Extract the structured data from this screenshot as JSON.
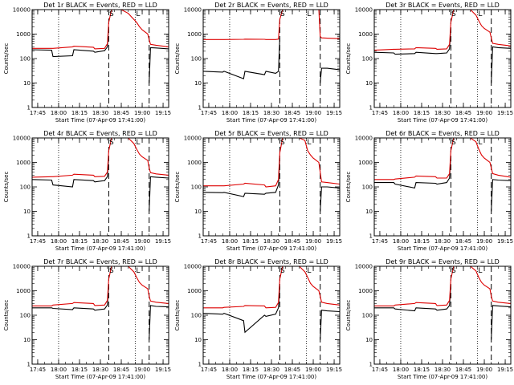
{
  "chart_data": {
    "type": "line",
    "layout": "3x3 grid",
    "xlabel": "Start Time (07-Apr-09 17:41:00)",
    "ylabel": "Counts/sec",
    "x_ticks": [
      "17:45",
      "18:00",
      "18:15",
      "18:30",
      "18:45",
      "19:00",
      "19:15"
    ],
    "x_start": "17:41",
    "x_end": "19:19",
    "y_scale": "log",
    "ylim": [
      1,
      10000
    ],
    "y_ticks": [
      1,
      10,
      100,
      1000,
      10000
    ],
    "y_tick_labels": [
      "1",
      "10",
      "100",
      "1000",
      "10000"
    ],
    "dotted_lines": [
      "18:00",
      "18:55"
    ],
    "dashed_lines": [
      "18:36",
      "19:05"
    ],
    "markers": [
      {
        "label": "S",
        "time": "18:38"
      },
      {
        "label": "L",
        "time": "18:57"
      }
    ],
    "legend": [
      {
        "name": "Events",
        "color": "#000000"
      },
      {
        "name": "LLD",
        "color": "#dd0000"
      }
    ],
    "series_x": [
      "17:41",
      "17:55",
      "17:56",
      "18:10",
      "18:11",
      "18:25",
      "18:26",
      "18:33",
      "18:35",
      "18:36",
      "18:38",
      "18:40",
      "18:45",
      "18:50",
      "18:54",
      "18:56",
      "18:58",
      "19:00",
      "19:04",
      "19:05",
      "19:06",
      "19:10",
      "19:19"
    ],
    "panels": [
      {
        "title": "Det 1r BLACK = Events, RED = LLD",
        "events": [
          230,
          220,
          120,
          130,
          230,
          200,
          180,
          210,
          300,
          2000,
          null,
          null,
          null,
          null,
          null,
          null,
          null,
          null,
          null,
          10,
          280,
          270,
          250
        ],
        "lld": [
          260,
          260,
          260,
          300,
          320,
          290,
          250,
          260,
          400,
          3000,
          10000,
          10000,
          10000,
          7000,
          4000,
          3000,
          2000,
          1500,
          1000,
          600,
          380,
          350,
          300
        ]
      },
      {
        "title": "Det 2r BLACK = Events, RED = LLD",
        "events": [
          30,
          28,
          30,
          15,
          30,
          22,
          30,
          25,
          30,
          700,
          null,
          null,
          null,
          null,
          null,
          null,
          null,
          null,
          null,
          10,
          40,
          40,
          35
        ],
        "lld": [
          600,
          600,
          600,
          610,
          620,
          610,
          600,
          600,
          620,
          4000,
          10000,
          10000,
          10000,
          10000,
          10000,
          10000,
          10000,
          10000,
          10000,
          800,
          700,
          680,
          650
        ]
      },
      {
        "title": "Det 3r BLACK = Events, RED = LLD",
        "events": [
          180,
          170,
          150,
          160,
          180,
          160,
          160,
          170,
          250,
          1800,
          null,
          null,
          null,
          null,
          null,
          null,
          null,
          null,
          null,
          10,
          300,
          280,
          260
        ],
        "lld": [
          220,
          240,
          240,
          250,
          280,
          260,
          240,
          250,
          380,
          3000,
          10000,
          10000,
          10000,
          10000,
          6000,
          3500,
          2200,
          1700,
          1200,
          700,
          420,
          380,
          330
        ]
      },
      {
        "title": "Det 4r BLACK = Events, RED = LLD",
        "events": [
          200,
          190,
          120,
          100,
          200,
          180,
          160,
          180,
          260,
          1800,
          null,
          null,
          null,
          null,
          null,
          null,
          null,
          null,
          null,
          10,
          260,
          250,
          230
        ],
        "lld": [
          250,
          260,
          260,
          300,
          330,
          300,
          260,
          270,
          400,
          3000,
          10000,
          10000,
          10000,
          10000,
          6000,
          3500,
          2200,
          1700,
          1200,
          600,
          380,
          340,
          300
        ]
      },
      {
        "title": "Det 5r BLACK = Events, RED = LLD",
        "events": [
          60,
          58,
          60,
          40,
          55,
          50,
          55,
          60,
          120,
          1500,
          null,
          null,
          null,
          null,
          null,
          null,
          null,
          null,
          null,
          10,
          100,
          100,
          90
        ],
        "lld": [
          110,
          110,
          110,
          130,
          140,
          120,
          100,
          110,
          200,
          2500,
          10000,
          10000,
          10000,
          10000,
          8000,
          3000,
          2000,
          1500,
          1000,
          400,
          160,
          150,
          130
        ]
      },
      {
        "title": "Det 6r BLACK = Events, RED = LLD",
        "events": [
          150,
          150,
          130,
          90,
          150,
          140,
          130,
          150,
          230,
          1800,
          null,
          null,
          null,
          null,
          null,
          null,
          null,
          null,
          null,
          10,
          200,
          190,
          180
        ],
        "lld": [
          200,
          200,
          210,
          250,
          280,
          260,
          230,
          230,
          350,
          3000,
          10000,
          10000,
          10000,
          10000,
          7000,
          3500,
          2000,
          1500,
          1000,
          600,
          350,
          300,
          250
        ]
      },
      {
        "title": "Det 7r BLACK = Events, RED = LLD",
        "events": [
          200,
          200,
          190,
          170,
          200,
          180,
          160,
          180,
          260,
          1800,
          null,
          null,
          null,
          null,
          null,
          null,
          null,
          null,
          null,
          10,
          250,
          230,
          220
        ],
        "lld": [
          240,
          240,
          260,
          300,
          330,
          300,
          250,
          260,
          400,
          3000,
          10000,
          10000,
          10000,
          10000,
          6000,
          3500,
          2200,
          1700,
          1200,
          600,
          380,
          340,
          300
        ]
      },
      {
        "title": "Det 8r BLACK = Events, RED = LLD",
        "events": [
          120,
          110,
          120,
          60,
          20,
          100,
          90,
          110,
          200,
          1500,
          null,
          null,
          null,
          null,
          null,
          null,
          null,
          null,
          null,
          10,
          160,
          150,
          140
        ],
        "lld": [
          200,
          200,
          210,
          230,
          250,
          240,
          200,
          210,
          330,
          3000,
          10000,
          10000,
          10000,
          10000,
          6000,
          3500,
          2000,
          1500,
          1000,
          600,
          340,
          300,
          260
        ]
      },
      {
        "title": "Det 9r BLACK = Events, RED = LLD",
        "events": [
          200,
          200,
          180,
          150,
          200,
          180,
          160,
          180,
          250,
          1800,
          null,
          null,
          null,
          null,
          null,
          null,
          null,
          null,
          null,
          10,
          250,
          240,
          220
        ],
        "lld": [
          240,
          240,
          260,
          300,
          330,
          300,
          250,
          260,
          400,
          3000,
          10000,
          10000,
          10000,
          10000,
          6500,
          3500,
          2200,
          1700,
          1200,
          600,
          380,
          340,
          300
        ]
      }
    ]
  }
}
